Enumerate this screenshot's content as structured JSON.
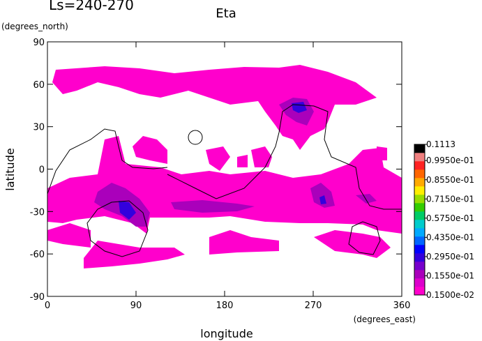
{
  "chart_data": {
    "type": "contour",
    "title": "Eta",
    "subtitle": "Ls=240-270",
    "x_label": "longitude",
    "x_units": "(degrees_east)",
    "y_label": "latitude",
    "y_units": "(degrees_north)",
    "xlim": [
      0,
      360
    ],
    "xticks": [
      0,
      90,
      180,
      270,
      360
    ],
    "ylim": [
      -90,
      90
    ],
    "yticks": [
      -90,
      -60,
      -30,
      0,
      30,
      60,
      90
    ],
    "colorbar": {
      "lim": [
        0.0015,
        0.1113
      ],
      "ticks": [
        {
          "value": 0.0015,
          "label": "0.1500e-02"
        },
        {
          "value": 0.0155,
          "label": "0.1550e-01"
        },
        {
          "value": 0.0295,
          "label": "0.2950e-01"
        },
        {
          "value": 0.0435,
          "label": "0.4350e-01"
        },
        {
          "value": 0.0575,
          "label": "0.5750e-01"
        },
        {
          "value": 0.0715,
          "label": "0.7150e-01"
        },
        {
          "value": 0.0855,
          "label": "0.8550e-01"
        },
        {
          "value": 0.0995,
          "label": "0.9950e-01"
        },
        0.1113
      ],
      "colors": [
        "#ff00cc",
        "#dd00cc",
        "#aa00bb",
        "#7700cc",
        "#3300dd",
        "#0000ff",
        "#0066ff",
        "#00aaff",
        "#00cccc",
        "#00cc66",
        "#33cc00",
        "#99dd00",
        "#ffee00",
        "#ffaa00",
        "#ff6600",
        "#ff2222",
        "#f08080",
        "#000000"
      ]
    }
  }
}
